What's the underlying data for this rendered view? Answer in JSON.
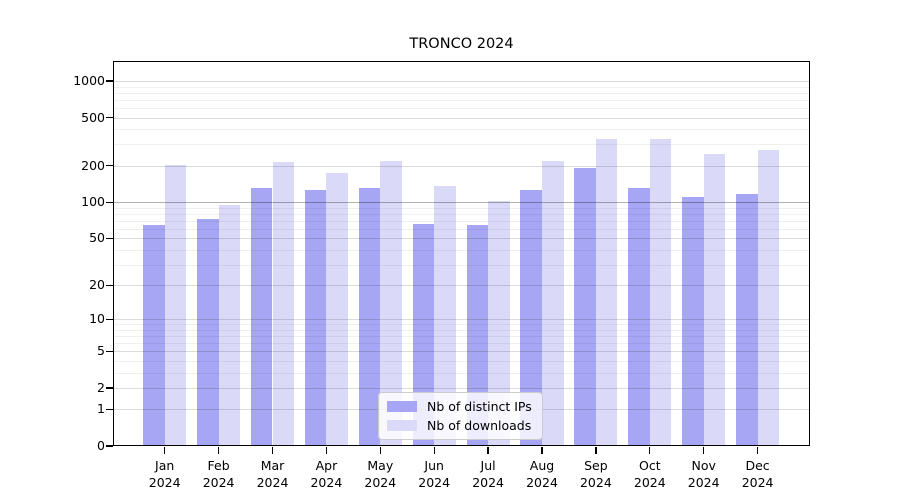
{
  "chart_data": {
    "type": "bar",
    "title": "TRONCO 2024",
    "xlabel": "",
    "ylabel": "",
    "scale": "log1p (symlog-like, linear at 0, log above)",
    "grid": true,
    "legend_position": "inside bottom-center",
    "categories": [
      "Jan 2024",
      "Feb 2024",
      "Mar 2024",
      "Apr 2024",
      "May 2024",
      "Jun 2024",
      "Jul 2024",
      "Aug 2024",
      "Sep 2024",
      "Oct 2024",
      "Nov 2024",
      "Dec 2024"
    ],
    "y_ticks": [
      0,
      1,
      2,
      5,
      10,
      20,
      50,
      100,
      200,
      500,
      1000
    ],
    "ylim": [
      0,
      1460
    ],
    "series": [
      {
        "name": "Nb of distinct IPs",
        "color": "#a6a6f5",
        "values": [
          65,
          72,
          130,
          127,
          130,
          66,
          65,
          125,
          192,
          130,
          110,
          118
        ]
      },
      {
        "name": "Nb of downloads",
        "color": "#dadaf8",
        "values": [
          205,
          95,
          215,
          175,
          220,
          135,
          102,
          220,
          330,
          335,
          250,
          272
        ]
      }
    ],
    "grid_colors": {
      "minor": "rgba(0,0,0,0.06)",
      "major": "rgba(0,0,0,0.14)",
      "emphasis_100": "rgba(0,0,0,0.30)"
    }
  }
}
